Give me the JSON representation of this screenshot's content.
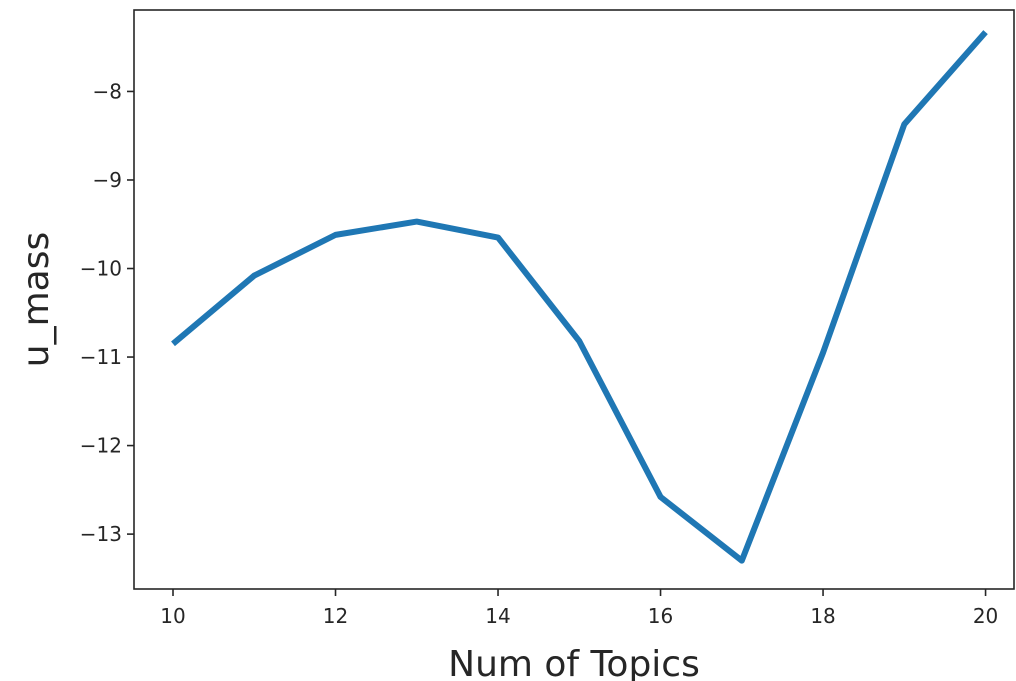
{
  "chart_data": {
    "type": "line",
    "title": "",
    "xlabel": "Num of Topics",
    "ylabel": "u_mass",
    "x": [
      10,
      11,
      12,
      13,
      14,
      15,
      16,
      17,
      18,
      19,
      20
    ],
    "series": [
      {
        "values": [
          -10.85,
          -10.08,
          -9.62,
          -9.47,
          -9.65,
          -10.82,
          -12.58,
          -13.3,
          -10.95,
          -8.37,
          -7.33
        ],
        "color": "#1f77b4"
      }
    ],
    "xlim": [
      9.52,
      20.35
    ],
    "ylim": [
      -13.62,
      -7.08
    ],
    "xticks": [
      10,
      12,
      14,
      16,
      18,
      20
    ],
    "yticks": [
      -13,
      -12,
      -11,
      -10,
      -9,
      -8
    ],
    "xtick_labels": [
      "10",
      "12",
      "14",
      "16",
      "18",
      "20"
    ],
    "ytick_labels": [
      "−13",
      "−12",
      "−11",
      "−10",
      "−9",
      "−8"
    ],
    "grid": false,
    "legend": false
  }
}
